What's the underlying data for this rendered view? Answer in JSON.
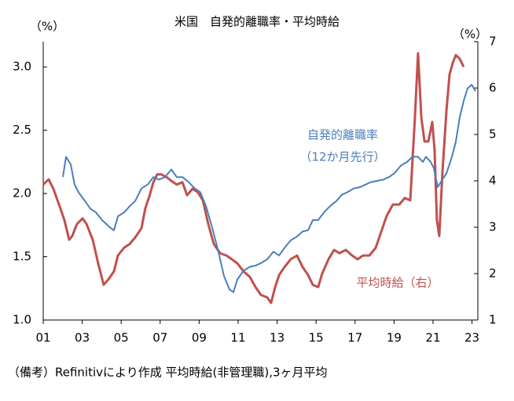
{
  "chart_data": {
    "type": "line",
    "title": "米国　自発的離職率・平均時給",
    "y_unit": "（%）",
    "y2_unit": "（%）",
    "annotation": "（12か月先行）",
    "footnote": "（備考）Refinitivにより作成 平均時給(非管理職),3ヶ月平均",
    "xlim": [
      2001,
      2023.3
    ],
    "ylim": [
      1.0,
      3.2
    ],
    "y2lim": [
      1,
      7
    ],
    "xticks": [
      {
        "value": 2001,
        "label": "01"
      },
      {
        "value": 2003,
        "label": "03"
      },
      {
        "value": 2005,
        "label": "05"
      },
      {
        "value": 2007,
        "label": "07"
      },
      {
        "value": 2009,
        "label": "09"
      },
      {
        "value": 2011,
        "label": "11"
      },
      {
        "value": 2013,
        "label": "13"
      },
      {
        "value": 2015,
        "label": "15"
      },
      {
        "value": 2017,
        "label": "17"
      },
      {
        "value": 2019,
        "label": "19"
      },
      {
        "value": 2021,
        "label": "21"
      },
      {
        "value": 2023,
        "label": "23"
      }
    ],
    "yticks": [
      {
        "value": 1,
        "label": "1.0"
      },
      1.5,
      {
        "value": 2,
        "label": "2.0"
      },
      2.5,
      {
        "value": 3,
        "label": "3.0"
      }
    ],
    "y2ticks": [
      1,
      2,
      3,
      4,
      5,
      6,
      7
    ],
    "series": [
      {
        "name": "自発的離職率",
        "color": "#4a7ebb",
        "axis": "y",
        "x": [
          2002.01,
          2002.17,
          2002.41,
          2002.61,
          2002.81,
          2003.14,
          2003.42,
          2003.7,
          2004.02,
          2004.43,
          2004.63,
          2004.83,
          2005.15,
          2005.44,
          2005.72,
          2006.04,
          2006.36,
          2006.65,
          2006.93,
          2007.25,
          2007.57,
          2007.85,
          2008.14,
          2008.46,
          2008.78,
          2009.06,
          2009.35,
          2009.67,
          2009.99,
          2010.27,
          2010.56,
          2010.76,
          2010.96,
          2011.28,
          2011.6,
          2011.89,
          2012.17,
          2012.49,
          2012.81,
          2013.1,
          2013.38,
          2013.7,
          2014.02,
          2014.31,
          2014.59,
          2014.83,
          2015.11,
          2015.4,
          2015.72,
          2016.04,
          2016.32,
          2016.6,
          2016.93,
          2017.25,
          2017.53,
          2017.81,
          2018.14,
          2018.46,
          2018.74,
          2019.02,
          2019.35,
          2019.67,
          2019.95,
          2020.23,
          2020.48,
          2020.64,
          2020.88,
          2021.04,
          2021.24,
          2021.44,
          2021.69,
          2021.97,
          2022.17,
          2022.37,
          2022.57,
          2022.77,
          2022.98,
          2023.18
        ],
        "values": [
          2.13,
          2.29,
          2.23,
          2.07,
          2.01,
          1.94,
          1.88,
          1.85,
          1.79,
          1.73,
          1.71,
          1.82,
          1.85,
          1.9,
          1.94,
          2.04,
          2.07,
          2.13,
          2.11,
          2.13,
          2.19,
          2.13,
          2.13,
          2.09,
          2.04,
          2.01,
          1.9,
          1.73,
          1.54,
          1.35,
          1.24,
          1.22,
          1.32,
          1.39,
          1.42,
          1.43,
          1.45,
          1.48,
          1.54,
          1.51,
          1.57,
          1.63,
          1.66,
          1.7,
          1.71,
          1.79,
          1.79,
          1.85,
          1.9,
          1.94,
          1.99,
          2.01,
          2.04,
          2.05,
          2.07,
          2.09,
          2.1,
          2.11,
          2.13,
          2.16,
          2.22,
          2.25,
          2.29,
          2.29,
          2.25,
          2.29,
          2.25,
          2.2,
          2.05,
          2.1,
          2.16,
          2.29,
          2.41,
          2.6,
          2.73,
          2.83,
          2.86,
          2.81
        ]
      },
      {
        "name": "平均時給（右）",
        "color": "#c0504d",
        "axis": "y2",
        "x": [
          2001.0,
          2001.28,
          2001.52,
          2001.81,
          2002.09,
          2002.33,
          2002.49,
          2002.73,
          2003.02,
          2003.22,
          2003.54,
          2003.82,
          2004.1,
          2004.35,
          2004.63,
          2004.83,
          2005.15,
          2005.44,
          2005.72,
          2006.04,
          2006.24,
          2006.44,
          2006.65,
          2006.85,
          2007.05,
          2007.33,
          2007.57,
          2007.85,
          2008.14,
          2008.38,
          2008.66,
          2008.94,
          2009.19,
          2009.47,
          2009.75,
          2010.07,
          2010.4,
          2010.68,
          2010.96,
          2011.28,
          2011.6,
          2011.89,
          2012.17,
          2012.49,
          2012.69,
          2012.9,
          2013.1,
          2013.38,
          2013.7,
          2014.02,
          2014.31,
          2014.59,
          2014.83,
          2015.11,
          2015.31,
          2015.64,
          2015.92,
          2016.2,
          2016.52,
          2016.85,
          2017.13,
          2017.41,
          2017.73,
          2018.06,
          2018.34,
          2018.62,
          2018.94,
          2019.27,
          2019.55,
          2019.83,
          2020.07,
          2020.23,
          2020.4,
          2020.56,
          2020.76,
          2020.96,
          2021.08,
          2021.2,
          2021.32,
          2021.48,
          2021.69,
          2021.85,
          2022.01,
          2022.17,
          2022.37,
          2022.57
        ],
        "values": [
          3.92,
          4.03,
          3.83,
          3.49,
          3.15,
          2.73,
          2.81,
          3.07,
          3.19,
          3.07,
          2.73,
          2.22,
          1.76,
          1.88,
          2.05,
          2.39,
          2.56,
          2.64,
          2.78,
          2.98,
          3.41,
          3.66,
          3.97,
          4.14,
          4.14,
          4.08,
          4.0,
          3.92,
          3.97,
          3.69,
          3.83,
          3.75,
          3.58,
          3.07,
          2.64,
          2.44,
          2.39,
          2.31,
          2.22,
          2.05,
          1.93,
          1.71,
          1.54,
          1.49,
          1.37,
          1.71,
          1.97,
          2.14,
          2.31,
          2.39,
          2.14,
          1.97,
          1.76,
          1.71,
          2.0,
          2.31,
          2.51,
          2.44,
          2.51,
          2.39,
          2.31,
          2.39,
          2.39,
          2.56,
          2.9,
          3.24,
          3.49,
          3.49,
          3.63,
          3.58,
          5.36,
          6.75,
          5.36,
          4.85,
          4.85,
          5.27,
          4.68,
          3.15,
          2.81,
          4.17,
          5.53,
          6.29,
          6.54,
          6.71,
          6.63,
          6.46
        ]
      }
    ]
  }
}
